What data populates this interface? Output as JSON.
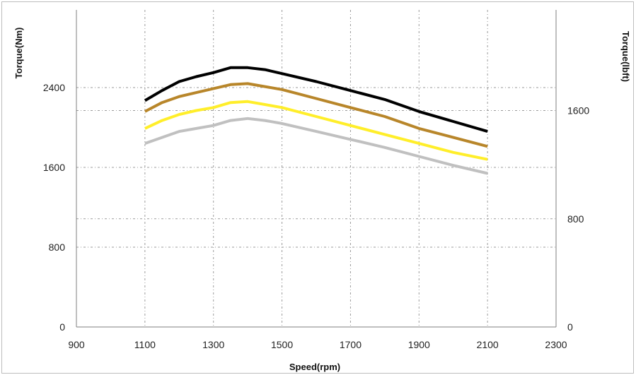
{
  "chart_data": {
    "type": "line",
    "title": "",
    "xlabel": "Speed(rpm)",
    "ylabel": "Torque(Nm)",
    "ylabel_right": "Torque(lbft)",
    "xlim": [
      900,
      2300
    ],
    "ylim": [
      0,
      2400
    ],
    "ylim_right": [
      0,
      1770
    ],
    "x_ticks": [
      900,
      1100,
      1300,
      1500,
      1700,
      1900,
      2100,
      2300
    ],
    "y_ticks": [
      0,
      800,
      1600,
      2400
    ],
    "y_ticks_right": [
      0,
      800,
      1600
    ],
    "grid": true,
    "legend": "none",
    "x": [
      1100,
      1150,
      1200,
      1250,
      1300,
      1350,
      1400,
      1450,
      1500,
      1600,
      1700,
      1800,
      1900,
      2000,
      2100
    ],
    "series": [
      {
        "color": "#000000",
        "values": [
          2270,
          2370,
          2460,
          2510,
          2550,
          2600,
          2600,
          2580,
          2540,
          2460,
          2370,
          2280,
          2160,
          2060,
          1960
        ]
      },
      {
        "color": "#b8862a",
        "values": [
          2160,
          2250,
          2310,
          2350,
          2390,
          2430,
          2440,
          2410,
          2380,
          2290,
          2200,
          2110,
          1990,
          1900,
          1810
        ]
      },
      {
        "color": "#ffee2a",
        "values": [
          1990,
          2070,
          2130,
          2170,
          2200,
          2250,
          2260,
          2230,
          2200,
          2110,
          2020,
          1930,
          1840,
          1750,
          1680
        ]
      },
      {
        "color": "#c0c0c0",
        "values": [
          1840,
          1900,
          1960,
          1990,
          2020,
          2070,
          2090,
          2070,
          2040,
          1960,
          1880,
          1800,
          1710,
          1620,
          1540
        ]
      }
    ]
  }
}
